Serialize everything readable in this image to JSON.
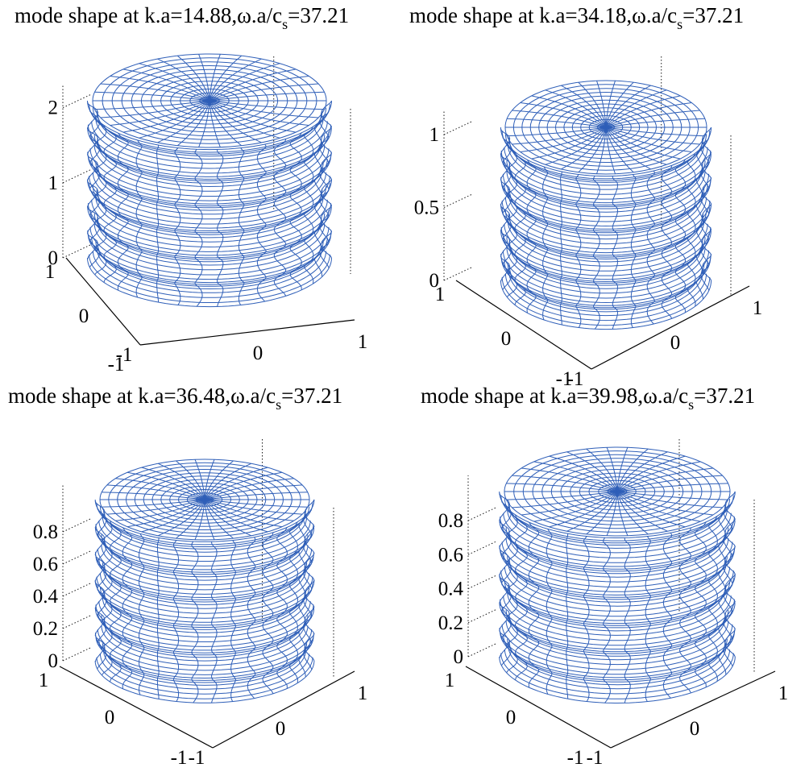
{
  "colors": {
    "mesh": "#2f5fb8",
    "axes": "#000000",
    "background": "#ffffff"
  },
  "chart_data": [
    {
      "type": "surface3d",
      "title_main": "mode shape at k.a=14.88,ω.a/c",
      "title_sub": "s",
      "title_tail": "=37.21",
      "z_ticks": [
        "0",
        "1",
        "2"
      ],
      "x_ticks": [
        "-1",
        "0",
        "1"
      ],
      "y_ticks": [
        "-1",
        "0",
        "1"
      ],
      "zlim": [
        0,
        2.2
      ],
      "axial_waves": 6,
      "grid": true
    },
    {
      "type": "surface3d",
      "title_main": "mode shape at k.a=34.18,ω.a/c",
      "title_sub": "s",
      "title_tail": "=37.21",
      "z_ticks": [
        "0",
        "0.5",
        "1"
      ],
      "x_ticks": [
        "-1",
        "0",
        "1"
      ],
      "y_ticks": [
        "-1",
        "0",
        "1"
      ],
      "zlim": [
        0,
        1.05
      ],
      "axial_waves": 6,
      "grid": true
    },
    {
      "type": "surface3d",
      "title_main": "mode shape at k.a=36.48,ω.a/c",
      "title_sub": "s",
      "title_tail": "=37.21",
      "z_ticks": [
        "0",
        "0.2",
        "0.4",
        "0.6",
        "0.8"
      ],
      "x_ticks": [
        "-1",
        "0",
        "1"
      ],
      "y_ticks": [
        "-1",
        "0",
        "1"
      ],
      "zlim": [
        0,
        0.95
      ],
      "axial_waves": 6,
      "grid": true
    },
    {
      "type": "surface3d",
      "title_main": "mode shape at k.a=39.98,ω.a/c",
      "title_sub": "s",
      "title_tail": "=37.21",
      "z_ticks": [
        "0",
        "0.2",
        "0.4",
        "0.6",
        "0.8"
      ],
      "x_ticks": [
        "-1",
        "0",
        "1"
      ],
      "y_ticks": [
        "-1",
        "0",
        "1"
      ],
      "zlim": [
        0,
        0.9
      ],
      "axial_waves": 6,
      "grid": true
    }
  ]
}
